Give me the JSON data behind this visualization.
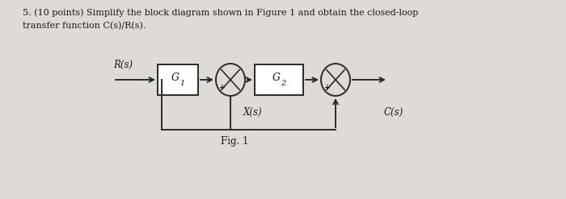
{
  "bg_color": "#dedad5",
  "text_color": "#1a1a1a",
  "title_line1": "5. (10 points) Simplify the block diagram shown in Figure 1 and obtain the closed-loop",
  "title_line2": "transfer function C(s)/R(s).",
  "fig_label": "Fig. 1",
  "diagram": {
    "R_label": "R(s)",
    "G1_label": "G",
    "G1_sub": "1",
    "G2_label": "G",
    "G2_sub": "2",
    "X_label": "X(s)",
    "C_label": "C(s)",
    "box_color": "#ffffff",
    "line_color": "#2a2a2a",
    "lw": 1.4
  },
  "figsize": [
    7.0,
    2.47
  ],
  "dpi": 100
}
